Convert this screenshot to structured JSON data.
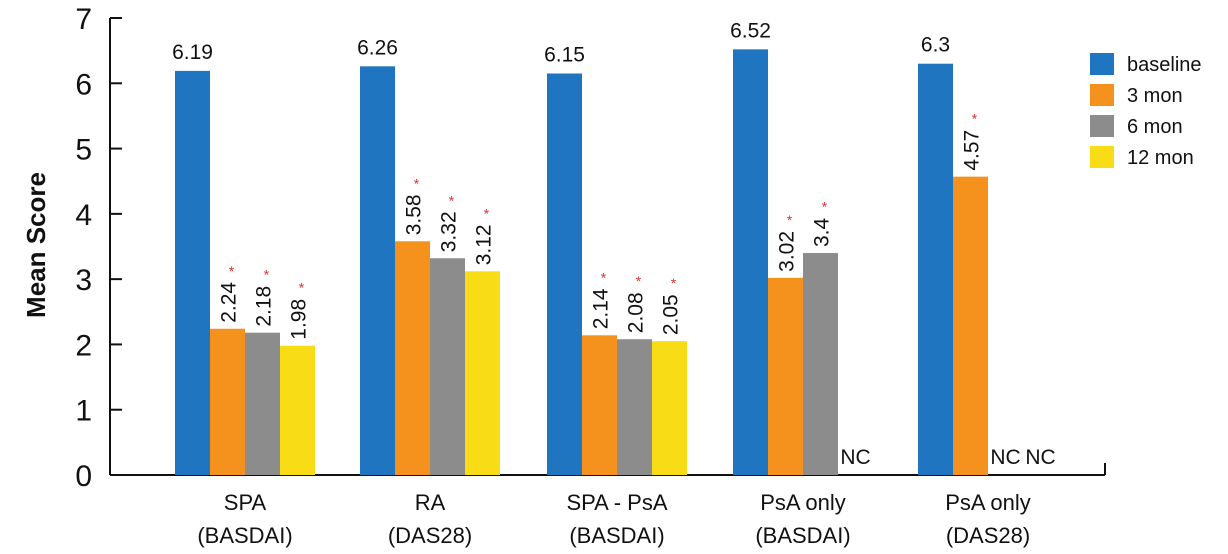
{
  "chart_data": {
    "type": "bar",
    "ylabel": "Mean Score",
    "ylim": [
      0,
      7
    ],
    "yticks": [
      "0",
      "1",
      "2",
      "3",
      "4",
      "5",
      "6",
      "7"
    ],
    "categories": [
      [
        "SPA",
        "(BASDAI)"
      ],
      [
        "RA",
        "(DAS28)"
      ],
      [
        "SPA - PsA",
        "(BASDAI)"
      ],
      [
        "PsA only",
        "(BASDAI)"
      ],
      [
        "PsA only",
        "(DAS28)"
      ]
    ],
    "series": [
      {
        "name": "baseline",
        "color": "#1f75bf",
        "values": [
          6.19,
          6.26,
          6.15,
          6.52,
          6.3
        ],
        "labels": [
          "6.19",
          "6.26",
          "6.15",
          "6.52",
          "6.3"
        ],
        "star": [
          false,
          false,
          false,
          false,
          false
        ]
      },
      {
        "name": "3 mon",
        "color": "#f5921e",
        "values": [
          2.24,
          3.58,
          2.14,
          3.02,
          4.57
        ],
        "labels": [
          "2.24",
          "3.58",
          "2.14",
          "3.02",
          "4.57"
        ],
        "star": [
          true,
          true,
          true,
          true,
          true
        ]
      },
      {
        "name": "6 mon",
        "color": "#8c8c8c",
        "values": [
          2.18,
          3.32,
          2.08,
          3.4,
          null
        ],
        "labels": [
          "2.18",
          "3.32",
          "2.08",
          "3.4",
          "NC"
        ],
        "star": [
          true,
          true,
          true,
          true,
          false
        ]
      },
      {
        "name": "12 mon",
        "color": "#f7dc16",
        "values": [
          1.98,
          3.12,
          2.05,
          null,
          null
        ],
        "labels": [
          "1.98",
          "3.12",
          "2.05",
          "NC",
          "NC"
        ],
        "star": [
          true,
          true,
          true,
          false,
          false
        ]
      }
    ],
    "significance_marker": "*",
    "legend_position": "right",
    "grid": false
  }
}
